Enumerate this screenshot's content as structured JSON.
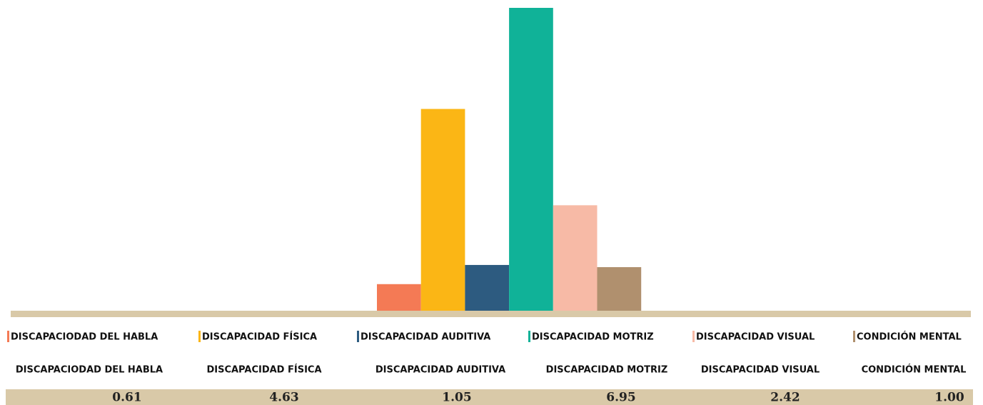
{
  "chart_data": {
    "type": "bar",
    "categories": [
      "DISCAPACIODAD DEL HABLA",
      "DISCAPACIDAD FÍSICA",
      "DISCAPACIDAD AUDITIVA",
      "DISCAPACIDAD MOTRIZ",
      "DISCAPACIDAD VISUAL",
      "CONDICIÓN MENTAL"
    ],
    "values": [
      0.61,
      4.63,
      1.05,
      6.95,
      2.42,
      1.0
    ],
    "value_labels": [
      "0.61",
      "4.63",
      "1.05",
      "6.95",
      "2.42",
      "1.00"
    ],
    "colors": [
      "#f47a55",
      "#fbb615",
      "#2d5b80",
      "#10b298",
      "#f7baa6",
      "#b0906e"
    ]
  }
}
